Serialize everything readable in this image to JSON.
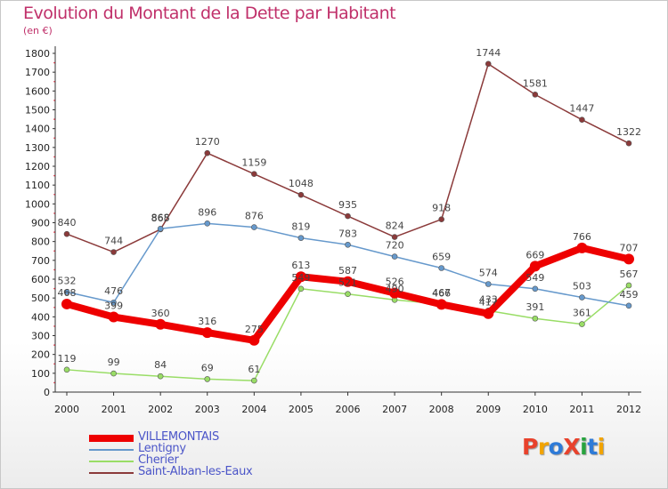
{
  "header": {
    "title": "Evolution du Montant de la Dette par Habitant",
    "unit": "(en €)"
  },
  "logo": {
    "text": "ProXiti",
    "colors": [
      "#e8422c",
      "#f2a400",
      "#2e7bd8",
      "#e8422c",
      "#27a33e",
      "#2e7bd8",
      "#f2a400"
    ]
  },
  "chart_data": {
    "type": "line",
    "title": "Evolution du Montant de la Dette par Habitant",
    "subtitle": "(en €)",
    "xlabel": "",
    "ylabel": "",
    "x": [
      "2000",
      "2001",
      "2002",
      "2003",
      "2004",
      "2005",
      "2006",
      "2007",
      "2008",
      "2009",
      "2010",
      "2011",
      "2012"
    ],
    "ylim": [
      0,
      1800
    ],
    "yticks": [
      0,
      100,
      200,
      300,
      400,
      500,
      600,
      700,
      800,
      900,
      1000,
      1100,
      1200,
      1300,
      1400,
      1500,
      1600,
      1700,
      1800
    ],
    "grid": false,
    "legend_position": "bottom-left",
    "series": [
      {
        "name": "VILLEMONTAIS",
        "color": "#ee0000",
        "values": [
          468,
          399,
          360,
          316,
          275,
          613,
          587,
          526,
          466,
          417,
          669,
          766,
          707
        ]
      },
      {
        "name": "Lentigny",
        "color": "#6699cc",
        "values": [
          532,
          476,
          868,
          896,
          876,
          819,
          783,
          720,
          659,
          574,
          549,
          503,
          459
        ]
      },
      {
        "name": "Cherier",
        "color": "#99dd66",
        "values": [
          119,
          99,
          84,
          69,
          61,
          549,
          521,
          490,
          467,
          433,
          391,
          361,
          567
        ]
      },
      {
        "name": "Saint-Alban-les-Eaux",
        "color": "#8b3a3a",
        "values": [
          840,
          744,
          865,
          1270,
          1159,
          1048,
          935,
          824,
          918,
          1744,
          1581,
          1447,
          1322
        ]
      }
    ]
  }
}
